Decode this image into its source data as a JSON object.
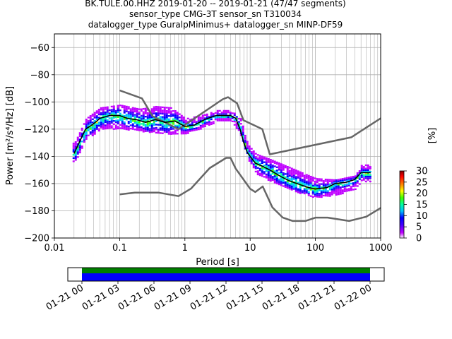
{
  "title": {
    "line1": "BK.TULE.00.HHZ   2019-01-20 -- 2019-01-21  (47/47 segments)",
    "line2": "sensor_type CMG-3T sensor_sn T310034",
    "line3": "datalogger_type GuralpMinimus+ datalogger_sn MINP-DF59"
  },
  "chart_data": {
    "type": "heatmap",
    "xlabel": "Period [s]",
    "ylabel": "Power [m²/s⁴/Hz] [dB]",
    "xscale": "log",
    "xlim": [
      0.01,
      1000
    ],
    "ylim": [
      -200,
      -50
    ],
    "x_ticks": [
      {
        "v": 0.01,
        "label": "0.01"
      },
      {
        "v": 0.1,
        "label": "0.1"
      },
      {
        "v": 1,
        "label": "1"
      },
      {
        "v": 10,
        "label": "10"
      },
      {
        "v": 100,
        "label": "100"
      },
      {
        "v": 1000,
        "label": "1000"
      }
    ],
    "y_ticks": [
      -60,
      -80,
      -100,
      -120,
      -140,
      -160,
      -180,
      -200
    ],
    "grid": true,
    "colorbar": {
      "label": "[%]",
      "range": [
        0,
        30
      ],
      "ticks": [
        0,
        5,
        10,
        15,
        20,
        25,
        30
      ],
      "colors": [
        "#ffffff",
        "#c000ff",
        "#4000ff",
        "#0000ff",
        "#00c0ff",
        "#00ffa0",
        "#40ff00",
        "#ffff00",
        "#ff8000",
        "#ff0000",
        "#800000"
      ]
    },
    "nlnm": {
      "x": [
        0.1,
        0.17,
        0.4,
        0.8,
        1.24,
        2.4,
        4.3,
        5.0,
        6.0,
        10,
        12,
        15.6,
        21.9,
        31.6,
        45,
        70,
        101,
        154,
        328,
        600,
        1000
      ],
      "y": [
        -168,
        -166.7,
        -166.7,
        -169.2,
        -163.7,
        -148.6,
        -141.1,
        -141.1,
        -149,
        -163.8,
        -166.2,
        -162.1,
        -177.5,
        -185,
        -187.5,
        -187.5,
        -185,
        -185,
        -187.5,
        -184.4,
        -177.9
      ]
    },
    "nhnm": {
      "x": [
        0.1,
        0.22,
        0.32,
        0.8,
        3.8,
        4.6,
        6.3,
        7.9,
        15.4,
        20,
        354.8,
        1000
      ],
      "y": [
        -91.5,
        -97.4,
        -110.5,
        -120,
        -98,
        -96.5,
        -101,
        -113.5,
        -120,
        -138.5,
        -126,
        -112
      ]
    },
    "median": {
      "x": [
        0.02,
        0.025,
        0.03,
        0.04,
        0.05,
        0.07,
        0.1,
        0.13,
        0.18,
        0.25,
        0.35,
        0.5,
        0.7,
        1.0,
        1.4,
        2.0,
        3.0,
        4.0,
        5.0,
        6.0,
        7.0,
        8.0,
        9.0,
        10,
        12,
        15,
        20,
        30,
        40,
        60,
        80,
        100,
        150,
        200,
        300,
        400,
        500,
        700
      ],
      "y": [
        -138,
        -128,
        -120,
        -116,
        -112,
        -110,
        -110,
        -112,
        -113,
        -115,
        -113,
        -115,
        -114,
        -118,
        -117,
        -113,
        -110,
        -110,
        -110,
        -112,
        -120,
        -130,
        -137,
        -140,
        -145,
        -147,
        -150,
        -155,
        -158,
        -161,
        -163,
        -164,
        -163,
        -160,
        -159,
        -157,
        -152,
        -152
      ]
    },
    "percentile_low": {
      "x": [
        0.02,
        0.03,
        0.05,
        0.1,
        0.2,
        0.35,
        0.6,
        1.0,
        2,
        3,
        5,
        7,
        9,
        12,
        20,
        40,
        70,
        100,
        200,
        400,
        500,
        700
      ],
      "y": [
        -142,
        -125,
        -118,
        -117,
        -119,
        -120,
        -121,
        -121,
        -116,
        -112,
        -112,
        -122,
        -139,
        -150,
        -156,
        -162,
        -166,
        -168,
        -166,
        -162,
        -156,
        -156
      ]
    },
    "percentile_high": {
      "x": [
        0.02,
        0.03,
        0.05,
        0.1,
        0.2,
        0.35,
        0.6,
        1.0,
        2,
        3,
        5,
        7,
        9,
        12,
        20,
        40,
        70,
        100,
        200,
        400,
        500,
        700
      ],
      "y": [
        -132,
        -114,
        -106,
        -104,
        -107,
        -105,
        -106,
        -114,
        -111,
        -108,
        -108,
        -114,
        -133,
        -140,
        -144,
        -150,
        -155,
        -158,
        -159,
        -156,
        -148,
        -148
      ]
    },
    "coverage": {
      "tick_labels": [
        "01-21 00",
        "01-21 03",
        "01-21 06",
        "01-21 09",
        "01-21 12",
        "01-21 15",
        "01-21 18",
        "01-21 21",
        "01-22 00"
      ],
      "bar_top_color": "#008000",
      "bar_bottom_color": "#0000ff"
    }
  }
}
